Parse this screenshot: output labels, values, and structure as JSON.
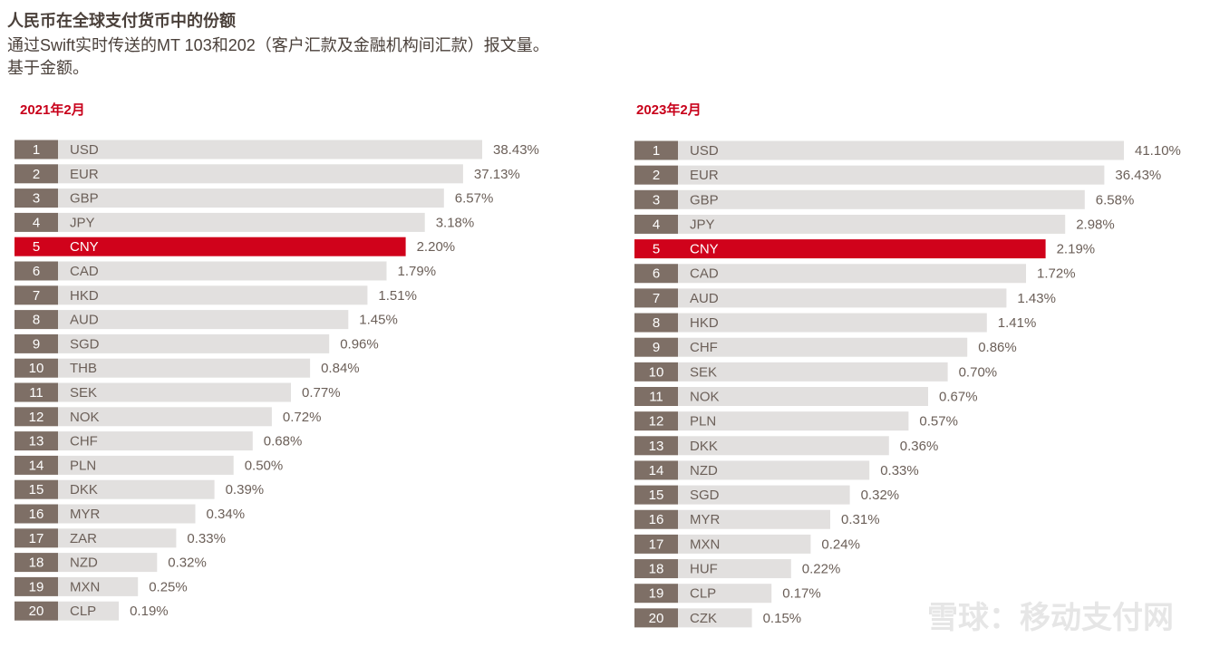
{
  "header": {
    "title": "人民币在全球支付货币中的份额",
    "subtitle_lines": [
      "通过Swift实时传送的MT 103和202（客户汇款及金融机构间汇款）报文量。",
      "基于金额。"
    ]
  },
  "panels": [
    {
      "label": "2021年2月",
      "rows": [
        {
          "rank": 1,
          "currency": "USD",
          "share": "38.43%"
        },
        {
          "rank": 2,
          "currency": "EUR",
          "share": "37.13%"
        },
        {
          "rank": 3,
          "currency": "GBP",
          "share": "6.57%"
        },
        {
          "rank": 4,
          "currency": "JPY",
          "share": "3.18%"
        },
        {
          "rank": 5,
          "currency": "CNY",
          "share": "2.20%",
          "color": "#d0021b"
        },
        {
          "rank": 6,
          "currency": "CAD",
          "share": "1.79%"
        },
        {
          "rank": 7,
          "currency": "HKD",
          "share": "1.51%"
        },
        {
          "rank": 8,
          "currency": "AUD",
          "share": "1.45%"
        },
        {
          "rank": 9,
          "currency": "SGD",
          "share": "0.96%"
        },
        {
          "rank": 10,
          "currency": "THB",
          "share": "0.84%"
        },
        {
          "rank": 11,
          "currency": "SEK",
          "share": "0.77%"
        },
        {
          "rank": 12,
          "currency": "NOK",
          "share": "0.72%"
        },
        {
          "rank": 13,
          "currency": "CHF",
          "share": "0.68%"
        },
        {
          "rank": 14,
          "currency": "PLN",
          "share": "0.50%"
        },
        {
          "rank": 15,
          "currency": "DKK",
          "share": "0.39%"
        },
        {
          "rank": 16,
          "currency": "MYR",
          "share": "0.34%"
        },
        {
          "rank": 17,
          "currency": "ZAR",
          "share": "0.33%"
        },
        {
          "rank": 18,
          "currency": "NZD",
          "share": "0.32%"
        },
        {
          "rank": 19,
          "currency": "MXN",
          "share": "0.25%"
        },
        {
          "rank": 20,
          "currency": "CLP",
          "share": "0.19%"
        }
      ]
    },
    {
      "label": "2023年2月",
      "rows": [
        {
          "rank": 1,
          "currency": "USD",
          "share": "41.10%"
        },
        {
          "rank": 2,
          "currency": "EUR",
          "share": "36.43%"
        },
        {
          "rank": 3,
          "currency": "GBP",
          "share": "6.58%"
        },
        {
          "rank": 4,
          "currency": "JPY",
          "share": "2.98%"
        },
        {
          "rank": 5,
          "currency": "CNY",
          "share": "2.19%",
          "color": "#d0021b"
        },
        {
          "rank": 6,
          "currency": "CAD",
          "share": "1.72%"
        },
        {
          "rank": 7,
          "currency": "AUD",
          "share": "1.43%"
        },
        {
          "rank": 8,
          "currency": "HKD",
          "share": "1.41%"
        },
        {
          "rank": 9,
          "currency": "CHF",
          "share": "0.86%"
        },
        {
          "rank": 10,
          "currency": "SEK",
          "share": "0.70%"
        },
        {
          "rank": 11,
          "currency": "NOK",
          "share": "0.67%"
        },
        {
          "rank": 12,
          "currency": "PLN",
          "share": "0.57%"
        },
        {
          "rank": 13,
          "currency": "DKK",
          "share": "0.36%"
        },
        {
          "rank": 14,
          "currency": "NZD",
          "share": "0.33%"
        },
        {
          "rank": 15,
          "currency": "SGD",
          "share": "0.32%"
        },
        {
          "rank": 16,
          "currency": "MYR",
          "share": "0.31%"
        },
        {
          "rank": 17,
          "currency": "MXN",
          "share": "0.24%"
        },
        {
          "rank": 18,
          "currency": "HUF",
          "share": "0.22%"
        },
        {
          "rank": 19,
          "currency": "CLP",
          "share": "0.17%"
        },
        {
          "rank": 20,
          "currency": "CZK",
          "share": "0.15%"
        }
      ]
    }
  ],
  "watermark": "雪球：移动支付网"
}
